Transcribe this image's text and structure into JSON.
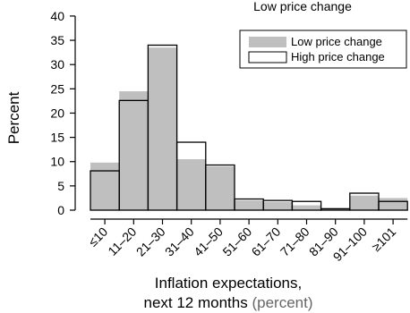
{
  "chart_data": {
    "type": "bar",
    "title": "",
    "title_partial": "Low price change",
    "ylabel": "Percent",
    "xlabel_line1": "Inflation expectations,",
    "xlabel_line2_main": "next 12 months",
    "xlabel_line2_unit": "(percent)",
    "ylim": [
      0,
      41
    ],
    "yticks": [
      0,
      5,
      10,
      15,
      20,
      25,
      30,
      35,
      40
    ],
    "categories": [
      "≤10",
      "11–20",
      "21–30",
      "31–40",
      "41–50",
      "51–60",
      "61–70",
      "71–80",
      "81–90",
      "91–100",
      "≥101"
    ],
    "series": [
      {
        "name": "Low price change",
        "color": "#bfbfbf",
        "values": [
          9.8,
          24.5,
          33.5,
          10.5,
          9.0,
          2.0,
          1.7,
          1.0,
          0.3,
          3.0,
          2.5
        ]
      },
      {
        "name": "High price change",
        "color": "#ffffff",
        "values": [
          8.1,
          22.6,
          34.0,
          14.0,
          9.3,
          2.3,
          2.0,
          1.8,
          0.3,
          3.5,
          1.8
        ]
      }
    ],
    "legend_position": "top-right",
    "grid": false
  }
}
